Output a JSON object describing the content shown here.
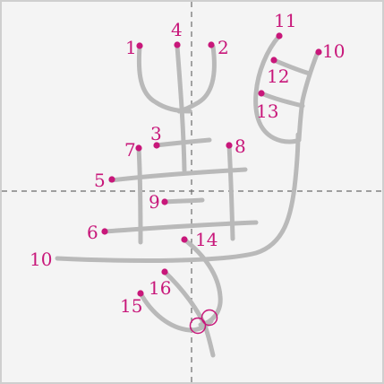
{
  "labels": {
    "n1": "1",
    "n2": "2",
    "n3": "3",
    "n4": "4",
    "n5": "5",
    "n6": "6",
    "n7": "7",
    "n8": "8",
    "n9": "9",
    "n10a": "10",
    "n10b": "10",
    "n11": "11",
    "n12": "12",
    "n13": "13",
    "n14": "14",
    "n15": "15",
    "n16": "16"
  },
  "colors": {
    "accent": "#c8177a",
    "stroke": "#b9b9b9",
    "guide": "#6b6b6b"
  }
}
